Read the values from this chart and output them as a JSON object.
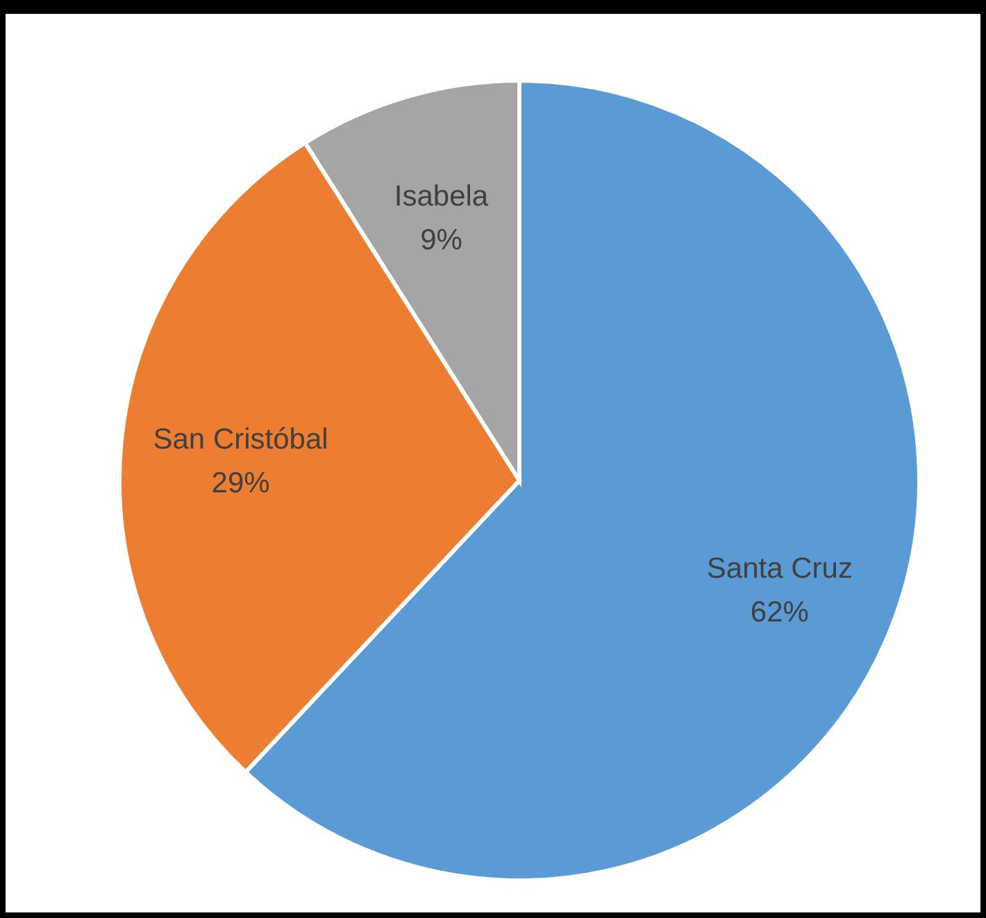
{
  "chart_data": {
    "type": "pie",
    "categories": [
      "Santa Cruz",
      "San Cristóbal",
      "Isabela"
    ],
    "values": [
      62,
      29,
      9
    ],
    "colors": [
      "#5b9bd5",
      "#ed7d31",
      "#a5a5a5"
    ],
    "value_labels": [
      "62%",
      "29%",
      "9%"
    ]
  }
}
